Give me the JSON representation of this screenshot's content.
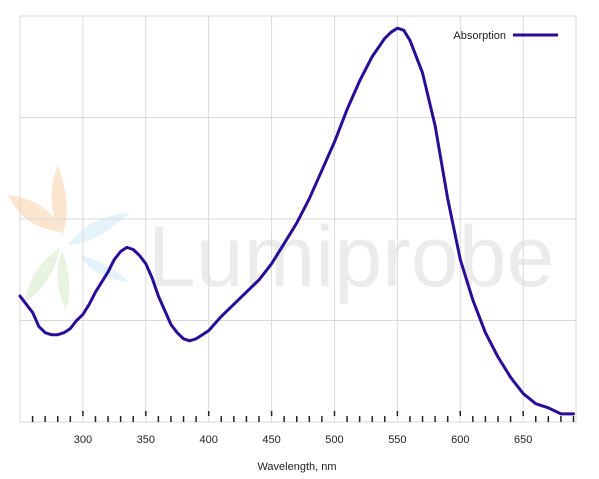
{
  "watermark": {
    "brand": "Lumiprobe"
  },
  "chart_data": {
    "type": "line",
    "title": "",
    "xlabel": "Wavelength, nm",
    "ylabel": "",
    "xlim": [
      250,
      692
    ],
    "ylim": [
      0,
      1.0
    ],
    "x_ticks": [
      300,
      350,
      400,
      450,
      500,
      550,
      600,
      650
    ],
    "x_tick_labels": [
      "300",
      "350",
      "400",
      "450",
      "500",
      "550",
      "600",
      "650"
    ],
    "grid": true,
    "legend_position": "top-right",
    "colors": {
      "series": "#2a0d96",
      "grid": "#d9d9d9",
      "axis": "#222222"
    },
    "series": [
      {
        "name": "Absorption",
        "x": [
          250,
          255,
          260,
          265,
          270,
          275,
          280,
          285,
          290,
          295,
          300,
          305,
          310,
          315,
          320,
          325,
          330,
          335,
          340,
          345,
          350,
          355,
          360,
          365,
          370,
          375,
          380,
          385,
          390,
          395,
          400,
          410,
          420,
          430,
          440,
          450,
          460,
          470,
          480,
          490,
          500,
          510,
          520,
          530,
          540,
          545,
          550,
          555,
          560,
          570,
          580,
          590,
          600,
          610,
          620,
          630,
          640,
          650,
          660,
          670,
          680,
          690
        ],
        "values": [
          0.31,
          0.29,
          0.27,
          0.235,
          0.22,
          0.215,
          0.215,
          0.22,
          0.23,
          0.25,
          0.265,
          0.29,
          0.32,
          0.345,
          0.37,
          0.4,
          0.42,
          0.43,
          0.425,
          0.41,
          0.39,
          0.355,
          0.31,
          0.275,
          0.24,
          0.22,
          0.205,
          0.2,
          0.205,
          0.215,
          0.225,
          0.26,
          0.29,
          0.32,
          0.35,
          0.39,
          0.44,
          0.49,
          0.55,
          0.62,
          0.69,
          0.77,
          0.84,
          0.9,
          0.945,
          0.96,
          0.97,
          0.965,
          0.94,
          0.86,
          0.73,
          0.55,
          0.4,
          0.3,
          0.22,
          0.16,
          0.11,
          0.07,
          0.045,
          0.035,
          0.02,
          0.02
        ]
      }
    ]
  }
}
